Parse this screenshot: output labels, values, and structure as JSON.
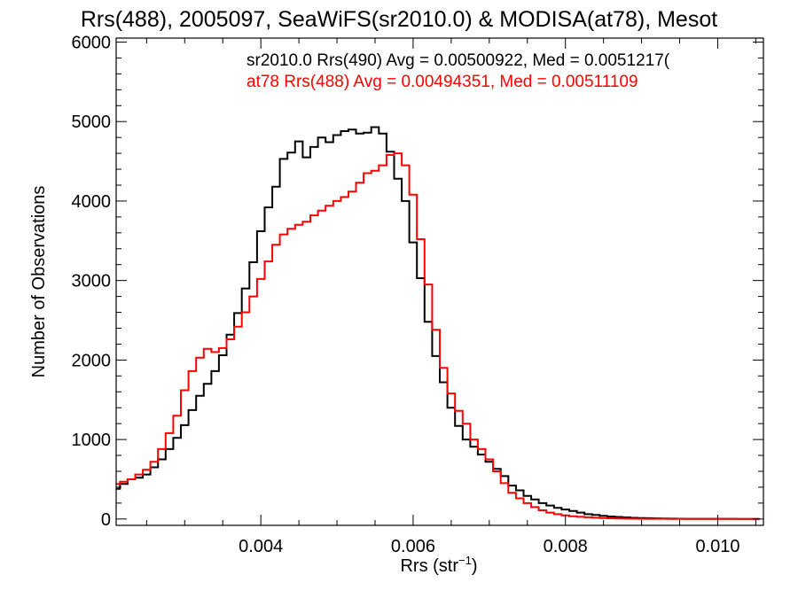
{
  "chart_data": {
    "type": "line",
    "step": true,
    "title": "Rrs(488), 2005097, SeaWiFS(sr2010.0) & MODISA(at78), Mesot",
    "xlabel": "Rrs (str",
    "xlabel_sup": "−1",
    "xlabel_end": ")",
    "ylabel": "Number of Observations",
    "xlim": [
      0.0021,
      0.0106
    ],
    "ylim": [
      -80,
      6050
    ],
    "xticks": [
      0.004,
      0.006,
      0.008,
      0.01
    ],
    "xtick_labels": [
      "0.004",
      "0.006",
      "0.008",
      "0.010"
    ],
    "yticks": [
      0,
      1000,
      2000,
      3000,
      4000,
      5000,
      6000
    ],
    "ytick_labels": [
      "0",
      "1000",
      "2000",
      "3000",
      "4000",
      "5000",
      "6000"
    ],
    "grid": false,
    "legend_position": "top-right",
    "legend": [
      "sr2010.0 Rrs(490) Avg = 0.00500922, Med = 0.0051217(",
      "at78 Rrs(488) Avg = 0.00494351, Med = 0.00511109"
    ],
    "x": [
      0.0021,
      0.0022,
      0.0023,
      0.0024,
      0.0025,
      0.0026,
      0.0027,
      0.0028,
      0.0029,
      0.003,
      0.0031,
      0.0032,
      0.0033,
      0.0034,
      0.0035,
      0.0036,
      0.0037,
      0.0038,
      0.0039,
      0.004,
      0.0041,
      0.0042,
      0.0043,
      0.0044,
      0.0045,
      0.0046,
      0.0047,
      0.0048,
      0.0049,
      0.005,
      0.0051,
      0.0052,
      0.0053,
      0.0054,
      0.0055,
      0.0056,
      0.0057,
      0.0058,
      0.0059,
      0.006,
      0.0061,
      0.0062,
      0.0063,
      0.0064,
      0.0065,
      0.0066,
      0.0067,
      0.0068,
      0.0069,
      0.007,
      0.0071,
      0.0072,
      0.0073,
      0.0074,
      0.0075,
      0.0076,
      0.0077,
      0.0078,
      0.0079,
      0.008,
      0.0081,
      0.0082,
      0.0083,
      0.0084,
      0.0085,
      0.0086,
      0.0087,
      0.0088,
      0.0089,
      0.009,
      0.0091,
      0.0092,
      0.0093,
      0.0094,
      0.0095,
      0.0096,
      0.0097,
      0.0098,
      0.0099,
      0.01,
      0.0101,
      0.0102,
      0.0103,
      0.0104,
      0.0105
    ],
    "series": [
      {
        "name": "sr2010.0 Rrs(490) Avg = 0.00500922, Med = 0.0051217(",
        "color": "#000000",
        "values": [
          380,
          440,
          500,
          520,
          560,
          650,
          750,
          880,
          1020,
          1180,
          1370,
          1550,
          1700,
          1860,
          2060,
          2320,
          2590,
          2900,
          3230,
          3620,
          3920,
          4180,
          4530,
          4610,
          4750,
          4550,
          4680,
          4800,
          4740,
          4830,
          4880,
          4900,
          4850,
          4860,
          4930,
          4850,
          4620,
          4280,
          4000,
          3480,
          3030,
          2480,
          2050,
          1720,
          1400,
          1170,
          1000,
          910,
          810,
          720,
          630,
          540,
          420,
          360,
          290,
          245,
          200,
          170,
          140,
          120,
          100,
          80,
          60,
          50,
          40,
          32,
          26,
          20,
          15,
          12,
          10,
          8,
          6,
          5,
          4,
          3,
          3,
          2,
          2,
          2,
          2,
          2,
          1,
          1,
          1
        ]
      },
      {
        "name": "at78 Rrs(488) Avg = 0.00494351, Med = 0.00511109",
        "color": "#ff0000",
        "values": [
          440,
          470,
          500,
          560,
          620,
          720,
          880,
          1080,
          1300,
          1620,
          1860,
          2030,
          2140,
          2100,
          2150,
          2260,
          2420,
          2600,
          2800,
          3020,
          3240,
          3450,
          3580,
          3650,
          3700,
          3740,
          3820,
          3880,
          3940,
          4000,
          4050,
          4120,
          4230,
          4350,
          4380,
          4450,
          4580,
          4600,
          4450,
          4080,
          3520,
          2950,
          2380,
          1900,
          1580,
          1360,
          1200,
          1000,
          880,
          750,
          600,
          450,
          330,
          260,
          200,
          150,
          110,
          80,
          60,
          45,
          35,
          27,
          21,
          16,
          12,
          9,
          7,
          5,
          4,
          3,
          3,
          2,
          2,
          1,
          1,
          1,
          1,
          1,
          0,
          0,
          0,
          0,
          0,
          0,
          0
        ]
      }
    ]
  }
}
